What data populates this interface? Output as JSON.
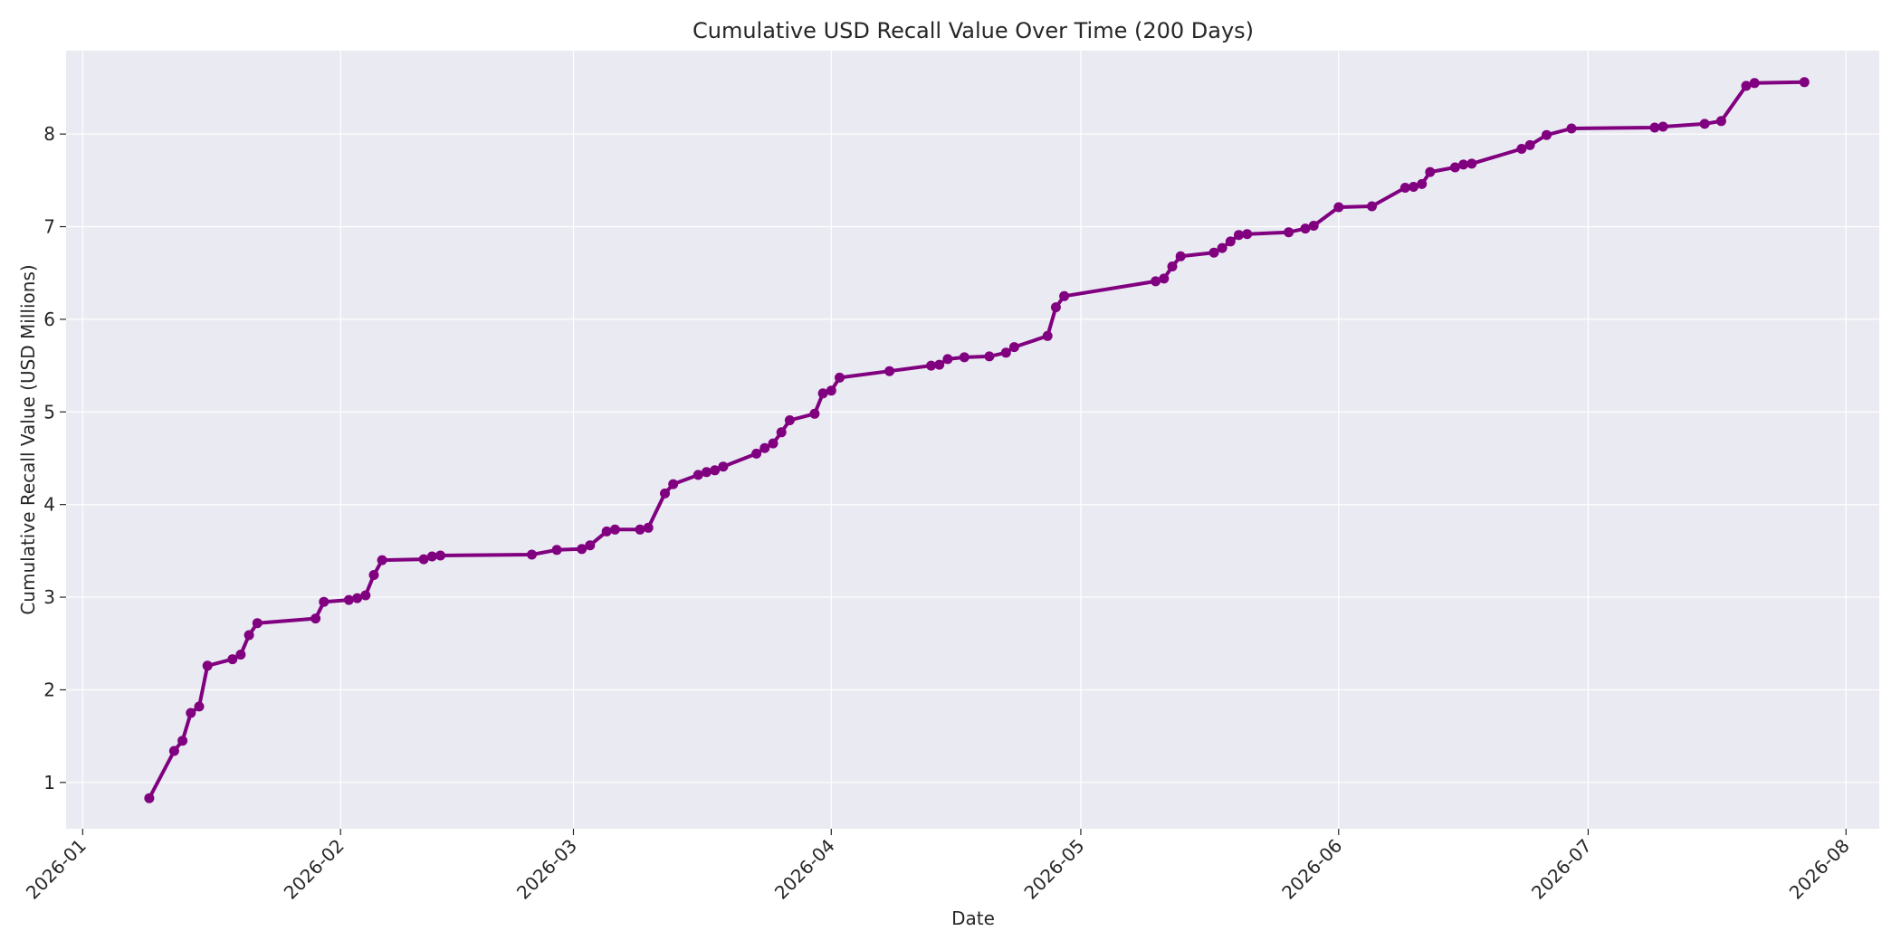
{
  "chart_data": {
    "type": "line",
    "title": "Cumulative USD Recall Value Over Time (200 Days)",
    "xlabel": "Date",
    "ylabel": "Cumulative Recall Value (USD Millions)",
    "x_axis_type": "date",
    "xlim": [
      "2025-12-30",
      "2026-08-05"
    ],
    "ylim": [
      0.5,
      8.9
    ],
    "x_ticks": [
      "2026-01-01",
      "2026-02-01",
      "2026-03-01",
      "2026-04-01",
      "2026-05-01",
      "2026-06-01",
      "2026-07-01",
      "2026-08-01"
    ],
    "x_tick_labels": [
      "2026-01",
      "2026-02",
      "2026-03",
      "2026-04",
      "2026-05",
      "2026-06",
      "2026-07",
      "2026-08"
    ],
    "y_ticks": [
      1,
      2,
      3,
      4,
      5,
      6,
      7,
      8
    ],
    "y_tick_labels": [
      "1",
      "2",
      "3",
      "4",
      "5",
      "6",
      "7",
      "8"
    ],
    "grid": true,
    "background_color": "#eaeaf2",
    "grid_color": "#ffffff",
    "line_color": "#800080",
    "series": [
      {
        "points": [
          [
            "2026-01-09",
            0.83
          ],
          [
            "2026-01-12",
            1.34
          ],
          [
            "2026-01-13",
            1.45
          ],
          [
            "2026-01-14",
            1.75
          ],
          [
            "2026-01-15",
            1.82
          ],
          [
            "2026-01-16",
            2.26
          ],
          [
            "2026-01-19",
            2.33
          ],
          [
            "2026-01-20",
            2.38
          ],
          [
            "2026-01-21",
            2.59
          ],
          [
            "2026-01-22",
            2.72
          ],
          [
            "2026-01-29",
            2.77
          ],
          [
            "2026-01-30",
            2.95
          ],
          [
            "2026-02-02",
            2.97
          ],
          [
            "2026-02-03",
            2.99
          ],
          [
            "2026-02-04",
            3.02
          ],
          [
            "2026-02-05",
            3.24
          ],
          [
            "2026-02-06",
            3.4
          ],
          [
            "2026-02-11",
            3.41
          ],
          [
            "2026-02-12",
            3.44
          ],
          [
            "2026-02-13",
            3.45
          ],
          [
            "2026-02-24",
            3.46
          ],
          [
            "2026-02-27",
            3.51
          ],
          [
            "2026-03-02",
            3.52
          ],
          [
            "2026-03-03",
            3.56
          ],
          [
            "2026-03-05",
            3.71
          ],
          [
            "2026-03-06",
            3.73
          ],
          [
            "2026-03-09",
            3.73
          ],
          [
            "2026-03-10",
            3.75
          ],
          [
            "2026-03-12",
            4.12
          ],
          [
            "2026-03-13",
            4.22
          ],
          [
            "2026-03-16",
            4.32
          ],
          [
            "2026-03-17",
            4.35
          ],
          [
            "2026-03-18",
            4.37
          ],
          [
            "2026-03-19",
            4.41
          ],
          [
            "2026-03-23",
            4.55
          ],
          [
            "2026-03-24",
            4.61
          ],
          [
            "2026-03-25",
            4.66
          ],
          [
            "2026-03-26",
            4.78
          ],
          [
            "2026-03-27",
            4.91
          ],
          [
            "2026-03-30",
            4.98
          ],
          [
            "2026-03-31",
            5.2
          ],
          [
            "2026-04-01",
            5.23
          ],
          [
            "2026-04-02",
            5.37
          ],
          [
            "2026-04-08",
            5.44
          ],
          [
            "2026-04-13",
            5.5
          ],
          [
            "2026-04-14",
            5.51
          ],
          [
            "2026-04-15",
            5.57
          ],
          [
            "2026-04-17",
            5.59
          ],
          [
            "2026-04-20",
            5.6
          ],
          [
            "2026-04-22",
            5.64
          ],
          [
            "2026-04-23",
            5.7
          ],
          [
            "2026-04-27",
            5.82
          ],
          [
            "2026-04-28",
            6.13
          ],
          [
            "2026-04-29",
            6.25
          ],
          [
            "2026-05-10",
            6.41
          ],
          [
            "2026-05-11",
            6.44
          ],
          [
            "2026-05-12",
            6.57
          ],
          [
            "2026-05-13",
            6.68
          ],
          [
            "2026-05-17",
            6.72
          ],
          [
            "2026-05-18",
            6.77
          ],
          [
            "2026-05-19",
            6.84
          ],
          [
            "2026-05-20",
            6.91
          ],
          [
            "2026-05-21",
            6.92
          ],
          [
            "2026-05-26",
            6.94
          ],
          [
            "2026-05-28",
            6.98
          ],
          [
            "2026-05-29",
            7.01
          ],
          [
            "2026-06-01",
            7.21
          ],
          [
            "2026-06-05",
            7.22
          ],
          [
            "2026-06-09",
            7.42
          ],
          [
            "2026-06-10",
            7.43
          ],
          [
            "2026-06-11",
            7.46
          ],
          [
            "2026-06-12",
            7.59
          ],
          [
            "2026-06-15",
            7.64
          ],
          [
            "2026-06-16",
            7.67
          ],
          [
            "2026-06-17",
            7.68
          ],
          [
            "2026-06-23",
            7.84
          ],
          [
            "2026-06-24",
            7.88
          ],
          [
            "2026-06-26",
            7.99
          ],
          [
            "2026-06-29",
            8.06
          ],
          [
            "2026-07-09",
            8.07
          ],
          [
            "2026-07-10",
            8.08
          ],
          [
            "2026-07-15",
            8.11
          ],
          [
            "2026-07-17",
            8.14
          ],
          [
            "2026-07-20",
            8.52
          ],
          [
            "2026-07-21",
            8.55
          ],
          [
            "2026-07-27",
            8.56
          ]
        ]
      }
    ]
  }
}
